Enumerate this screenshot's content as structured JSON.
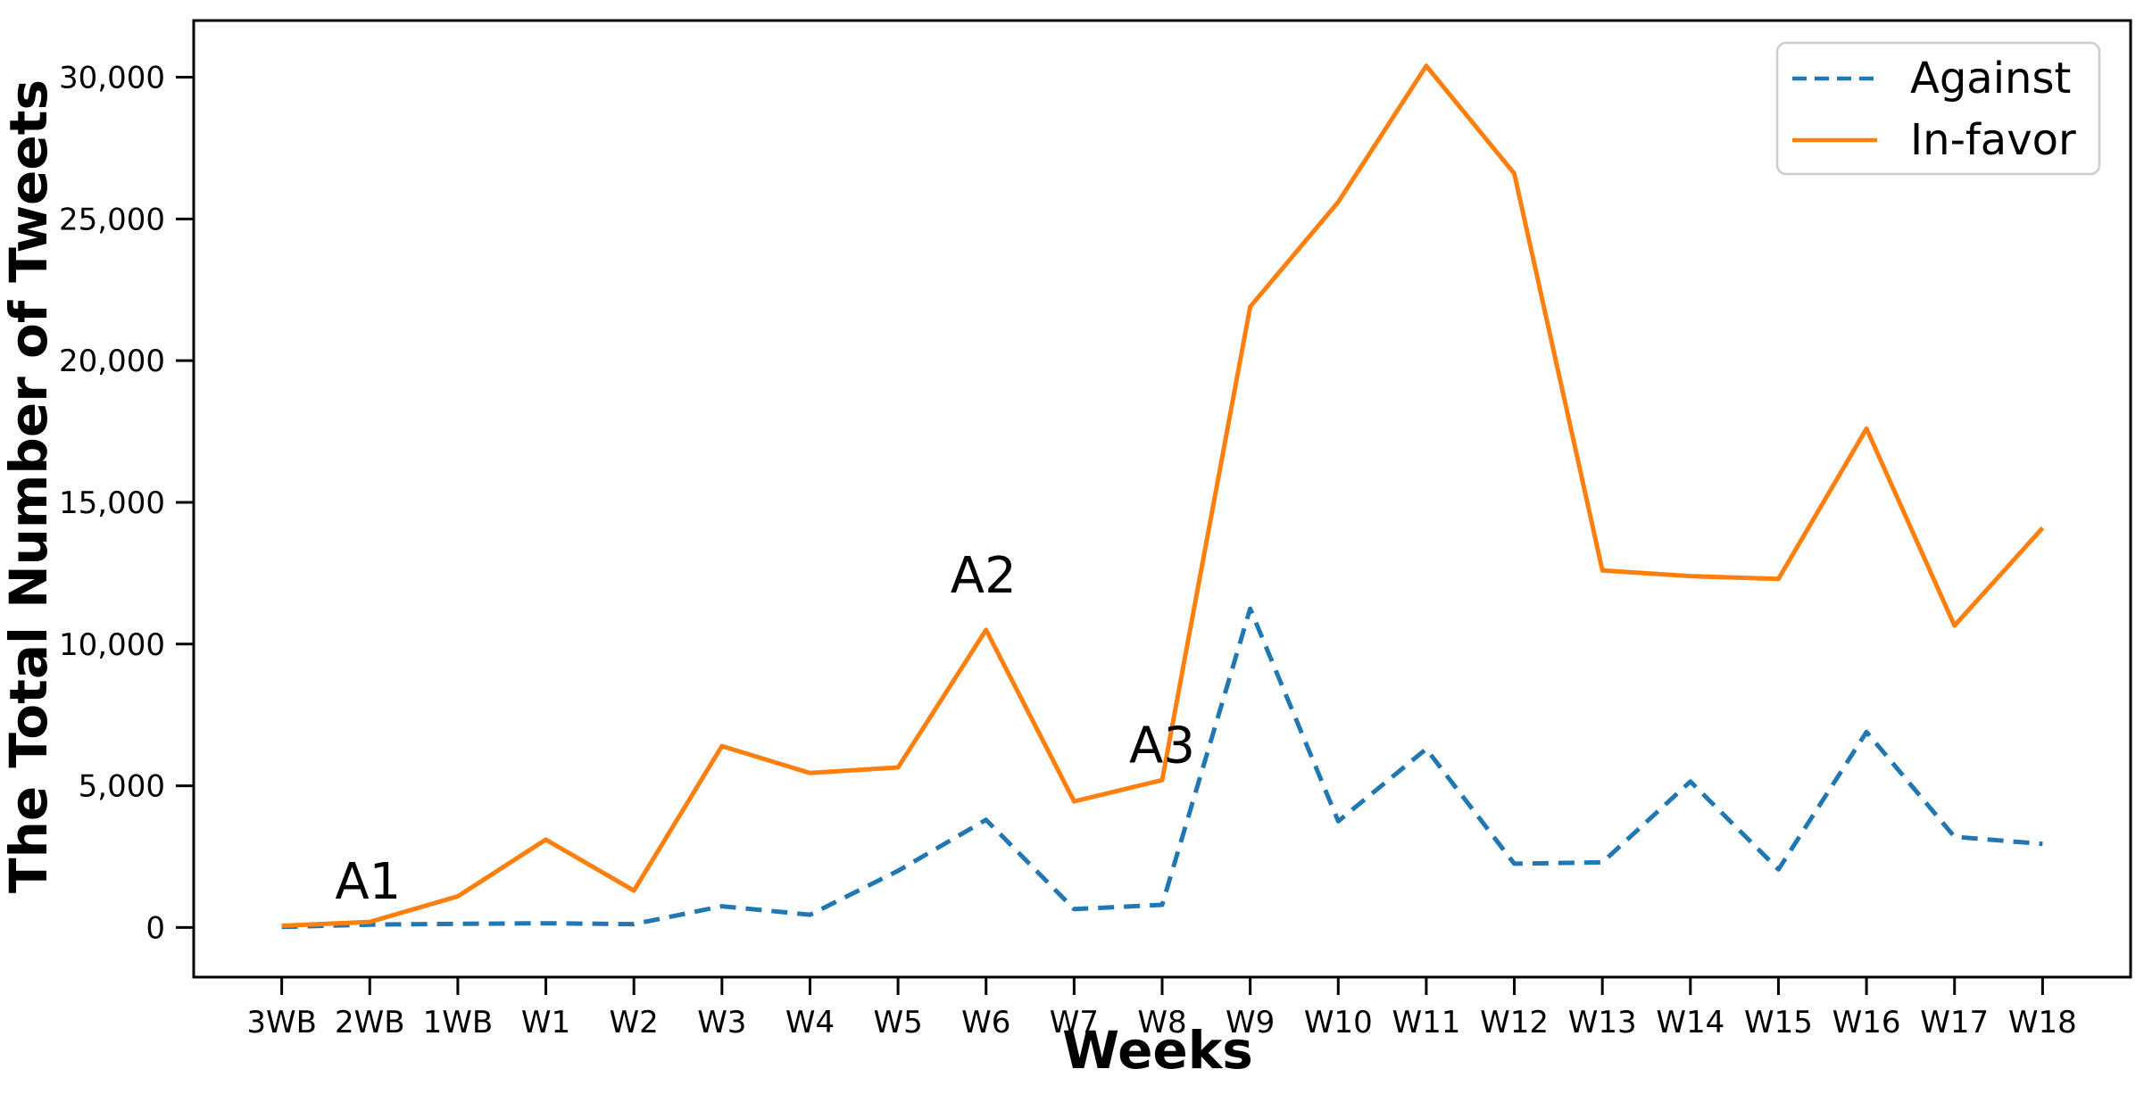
{
  "chart_data": {
    "type": "line",
    "title": "",
    "xlabel": "Weeks",
    "ylabel": "The Total Number of Tweets",
    "grid": false,
    "legend_position": "upper right",
    "xlim": [
      -1,
      21
    ],
    "ylim": [
      -1750,
      32000
    ],
    "categories": [
      "3WB",
      "2WB",
      "1WB",
      "W1",
      "W2",
      "W3",
      "W4",
      "W5",
      "W6",
      "W7",
      "W8",
      "W9",
      "W10",
      "W11",
      "W12",
      "W13",
      "W14",
      "W15",
      "W16",
      "W17",
      "W18"
    ],
    "series": [
      {
        "name": "Against",
        "color": "#1f77b4",
        "style": "dashed",
        "values": [
          20,
          100,
          130,
          150,
          120,
          750,
          450,
          2000,
          3800,
          650,
          800,
          11250,
          3750,
          6300,
          2250,
          2300,
          5150,
          2050,
          6900,
          3200,
          2950
        ]
      },
      {
        "name": "In-favor",
        "color": "#ff7f0e",
        "style": "solid",
        "values": [
          60,
          200,
          1100,
          3100,
          1300,
          6400,
          5450,
          5650,
          10500,
          4450,
          5200,
          21900,
          25600,
          30400,
          26600,
          12600,
          12400,
          12300,
          17600,
          10650,
          14100
        ]
      }
    ],
    "yticks": [
      {
        "value": 0,
        "label": "0"
      },
      {
        "value": 5000,
        "label": "5,000"
      },
      {
        "value": 10000,
        "label": "10,000"
      },
      {
        "value": 15000,
        "label": "15,000"
      },
      {
        "value": 20000,
        "label": "20,000"
      },
      {
        "value": 25000,
        "label": "25,000"
      },
      {
        "value": 30000,
        "label": "30,000"
      }
    ],
    "annotations": [
      {
        "label": "A1",
        "x_index": 0.98,
        "y_value": 1600
      },
      {
        "label": "A2",
        "x_index": 7.97,
        "y_value": 12400
      },
      {
        "label": "A3",
        "x_index": 10.0,
        "y_value": 6400
      }
    ],
    "colors": {
      "axis": "#000000",
      "legend_border": "#cccccc",
      "background": "#ffffff"
    }
  }
}
